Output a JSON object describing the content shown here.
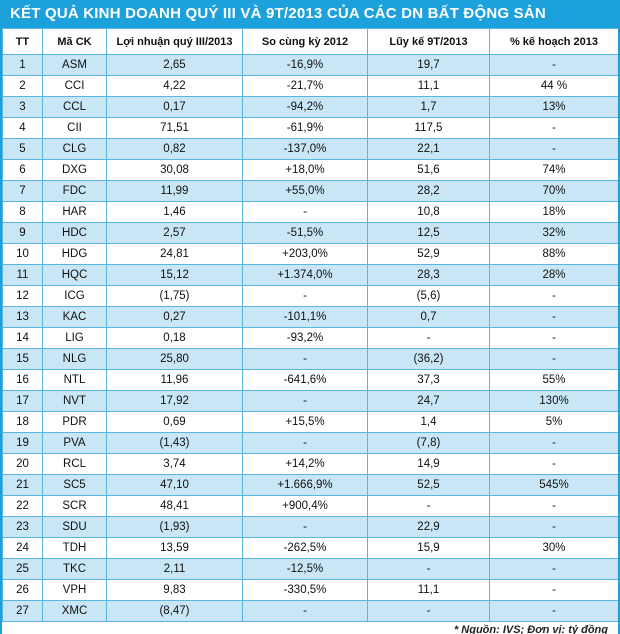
{
  "chart_data": {
    "type": "table",
    "title": "KẾT QUẢ KINH DOANH QUÝ III VÀ 9T/2013 CỦA CÁC DN BẤT ĐỘNG SẢN",
    "columns": [
      "TT",
      "Mã CK",
      "Lợi nhuận quý III/2013",
      "So cùng kỳ 2012",
      "Lũy kế 9T/2013",
      "% kế hoạch 2013"
    ],
    "rows": [
      [
        "1",
        "ASM",
        "2,65",
        "-16,9%",
        "19,7",
        "-"
      ],
      [
        "2",
        "CCI",
        "4,22",
        "-21,7%",
        "11,1",
        "44 %"
      ],
      [
        "3",
        "CCL",
        "0,17",
        "-94,2%",
        "1,7",
        "13%"
      ],
      [
        "4",
        "CII",
        "71,51",
        "-61,9%",
        "117,5",
        "-"
      ],
      [
        "5",
        "CLG",
        "0,82",
        "-137,0%",
        "22,1",
        "-"
      ],
      [
        "6",
        "DXG",
        "30,08",
        "+18,0%",
        "51,6",
        "74%"
      ],
      [
        "7",
        "FDC",
        "11,99",
        "+55,0%",
        "28,2",
        "70%"
      ],
      [
        "8",
        "HAR",
        "1,46",
        "-",
        "10,8",
        "18%"
      ],
      [
        "9",
        "HDC",
        "2,57",
        "-51,5%",
        "12,5",
        "32%"
      ],
      [
        "10",
        "HDG",
        "24,81",
        "+203,0%",
        "52,9",
        "88%"
      ],
      [
        "11",
        "HQC",
        "15,12",
        "+1.374,0%",
        "28,3",
        "28%"
      ],
      [
        "12",
        "ICG",
        "(1,75)",
        "-",
        "(5,6)",
        "-"
      ],
      [
        "13",
        "KAC",
        "0,27",
        "-101,1%",
        "0,7",
        "-"
      ],
      [
        "14",
        "LIG",
        "0,18",
        "-93,2%",
        "-",
        "-"
      ],
      [
        "15",
        "NLG",
        "25,80",
        "-",
        "(36,2)",
        "-"
      ],
      [
        "16",
        "NTL",
        "11,96",
        "-641,6%",
        "37,3",
        "55%"
      ],
      [
        "17",
        "NVT",
        "17,92",
        "-",
        "24,7",
        "130%"
      ],
      [
        "18",
        "PDR",
        "0,69",
        "+15,5%",
        "1,4",
        "5%"
      ],
      [
        "19",
        "PVA",
        "(1,43)",
        "-",
        "(7,8)",
        "-"
      ],
      [
        "20",
        "RCL",
        "3,74",
        "+14,2%",
        "14,9",
        "-"
      ],
      [
        "21",
        "SC5",
        "47,10",
        "+1.666,9%",
        "52,5",
        "545%"
      ],
      [
        "22",
        "SCR",
        "48,41",
        "+900,4%",
        "-",
        "-"
      ],
      [
        "23",
        "SDU",
        "(1,93)",
        "-",
        "22,9",
        "-"
      ],
      [
        "24",
        "TDH",
        "13,59",
        "-262,5%",
        "15,9",
        "30%"
      ],
      [
        "25",
        "TKC",
        "2,11",
        "-12,5%",
        "-",
        "-"
      ],
      [
        "26",
        "VPH",
        "9,83",
        "-330,5%",
        "11,1",
        "-"
      ],
      [
        "27",
        "XMC",
        "(8,47)",
        "-",
        "-",
        "-"
      ]
    ],
    "footnote": "* Nguồn: IVS; Đơn vị: tỷ đồng"
  },
  "colors": {
    "header_bg": "#1da1dc",
    "header_text": "#ffffff",
    "row_alt_bg": "#c8e6f6",
    "grid_line": "#5ab5e3",
    "body_text": "#111111"
  }
}
